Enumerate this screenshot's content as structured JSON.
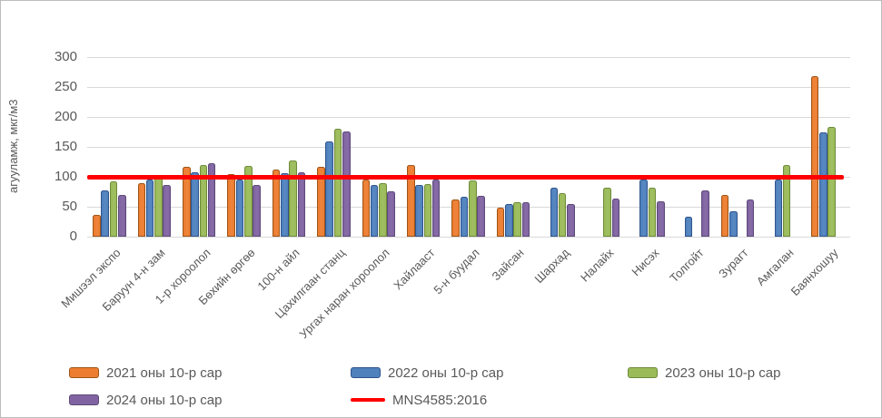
{
  "chart_data": {
    "type": "bar",
    "title": "",
    "ylabel": "агууламж,  мкг/м3",
    "xlabel": "",
    "ylim": [
      0,
      300
    ],
    "yticks": [
      300,
      250,
      200,
      150,
      100,
      50,
      0
    ],
    "grid": true,
    "legend_position": "bottom",
    "categories": [
      "Мишээл экспо",
      "Баруун 4-н зам",
      "1-р хороолол",
      "Бөхийн өргөө",
      "100-н айл",
      "Цахилгаан станц",
      "Ургах наран хороолол",
      "Хайлааст",
      "5-н буудал",
      "Зайсан",
      "Шархад",
      "Налайх",
      "Нисэх",
      "Толгойт",
      "Зурагт",
      "Амгалан",
      "Баянхошуу"
    ],
    "series": [
      {
        "name": "2021 оны 10-р сар",
        "color": "#ED7D31",
        "border": "#9C5518",
        "values": [
          37,
          90,
          117,
          104,
          112,
          117,
          96,
          120,
          62,
          48,
          null,
          null,
          null,
          null,
          70,
          null,
          268
        ]
      },
      {
        "name": "2022 оны 10-р сар",
        "color": "#4F81BD",
        "border": "#31548C",
        "values": [
          77,
          95,
          107,
          95,
          106,
          159,
          86,
          86,
          67,
          55,
          82,
          null,
          95,
          34,
          43,
          95,
          175
        ]
      },
      {
        "name": "2023 оны 10-р сар",
        "color": "#9BBB59",
        "border": "#6E8B3B",
        "values": [
          92,
          102,
          119,
          118,
          127,
          180,
          90,
          88,
          94,
          57,
          72,
          82,
          82,
          null,
          null,
          119,
          183
        ]
      },
      {
        "name": "2024 оны 10-р сар",
        "color": "#8064A2",
        "border": "#5E4A79",
        "values": [
          70,
          87,
          122,
          87,
          108,
          176,
          76,
          95,
          68,
          57,
          55,
          64,
          59,
          78,
          62,
          null,
          null
        ]
      }
    ],
    "ref_line": {
      "label": "MNS4585:2016",
      "value": 100,
      "color": "#FF0000"
    }
  }
}
